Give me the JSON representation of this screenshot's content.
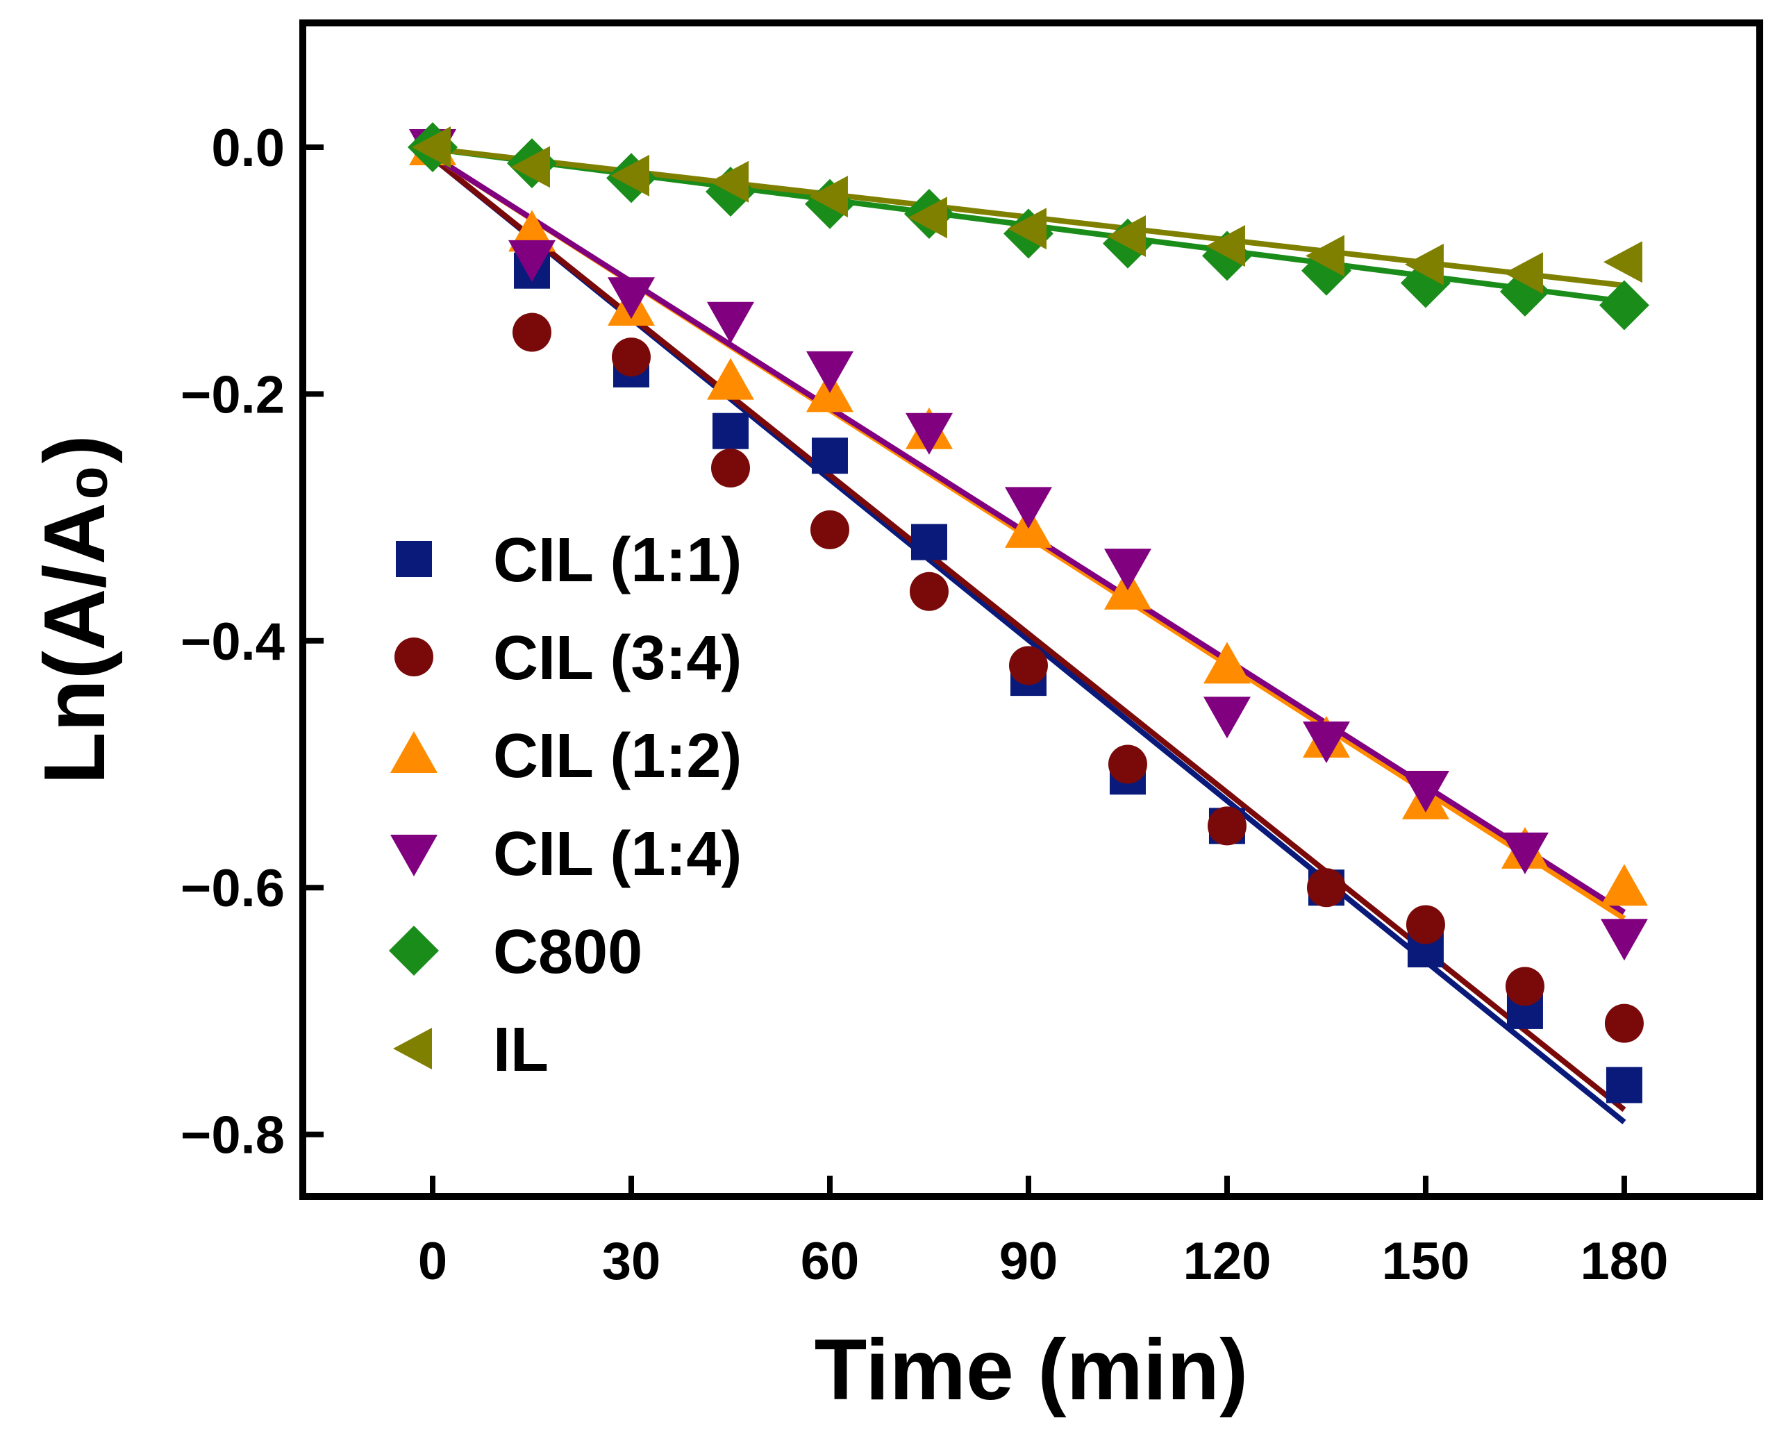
{
  "chart_data": {
    "type": "scatter",
    "title": "",
    "xlabel": "Time (min)",
    "ylabel": "Ln(A/A₀)",
    "xlim": [
      -20,
      200
    ],
    "ylim": [
      -0.85,
      0.1
    ],
    "xticks": [
      0,
      30,
      60,
      90,
      120,
      150,
      180
    ],
    "yticks": [
      0.0,
      -0.2,
      -0.4,
      -0.6,
      -0.8
    ],
    "xtick_labels": [
      "0",
      "30",
      "60",
      "90",
      "120",
      "150",
      "180"
    ],
    "ytick_labels": [
      "0.0",
      "−0.2",
      "−0.4",
      "−0.6",
      "−0.8"
    ],
    "x": [
      0,
      15,
      30,
      45,
      60,
      75,
      90,
      105,
      120,
      135,
      150,
      165,
      180
    ],
    "legend_position": "left",
    "series": [
      {
        "name": "CIL (1:1)",
        "marker": "square",
        "color": "#0a1a7a",
        "values": [
          0.0,
          -0.1,
          -0.18,
          -0.23,
          -0.25,
          -0.32,
          -0.43,
          -0.51,
          -0.55,
          -0.6,
          -0.65,
          -0.7,
          -0.76
        ],
        "fit": [
          [
            -2,
            0.0
          ],
          [
            180,
            -0.79
          ]
        ]
      },
      {
        "name": "CIL (3:4)",
        "marker": "circle",
        "color": "#7a0a0a",
        "values": [
          0.0,
          -0.15,
          -0.17,
          -0.26,
          -0.31,
          -0.36,
          -0.42,
          -0.5,
          -0.55,
          -0.6,
          -0.63,
          -0.68,
          -0.71
        ],
        "fit": [
          [
            -2,
            0.0
          ],
          [
            180,
            -0.78
          ]
        ]
      },
      {
        "name": "CIL (1:2)",
        "marker": "triangle-up",
        "color": "#ff8c00",
        "values": [
          0.0,
          -0.07,
          -0.13,
          -0.19,
          -0.2,
          -0.23,
          -0.31,
          -0.36,
          -0.42,
          -0.48,
          -0.53,
          -0.57,
          -0.6
        ],
        "fit": [
          [
            -2,
            0.0
          ],
          [
            180,
            -0.625
          ]
        ]
      },
      {
        "name": "CIL (1:4)",
        "marker": "triangle-down",
        "color": "#800080",
        "values": [
          0.0,
          -0.09,
          -0.12,
          -0.14,
          -0.18,
          -0.23,
          -0.29,
          -0.34,
          -0.46,
          -0.48,
          -0.52,
          -0.57,
          -0.64
        ],
        "fit": [
          [
            -2,
            0.0
          ],
          [
            180,
            -0.62
          ]
        ]
      },
      {
        "name": "C800",
        "marker": "diamond",
        "color": "#1a8c1a",
        "values": [
          0.0,
          -0.013,
          -0.025,
          -0.036,
          -0.046,
          -0.054,
          -0.07,
          -0.078,
          -0.088,
          -0.1,
          -0.11,
          -0.117,
          -0.128
        ],
        "fit": [
          [
            -2,
            0.0
          ],
          [
            180,
            -0.125
          ]
        ]
      },
      {
        "name": "IL",
        "marker": "triangle-left",
        "color": "#808000",
        "values": [
          0.0,
          -0.016,
          -0.023,
          -0.028,
          -0.04,
          -0.057,
          -0.066,
          -0.072,
          -0.08,
          -0.088,
          -0.095,
          -0.102,
          -0.093
        ],
        "fit": [
          [
            -2,
            0.0
          ],
          [
            180,
            -0.112
          ]
        ]
      }
    ]
  }
}
